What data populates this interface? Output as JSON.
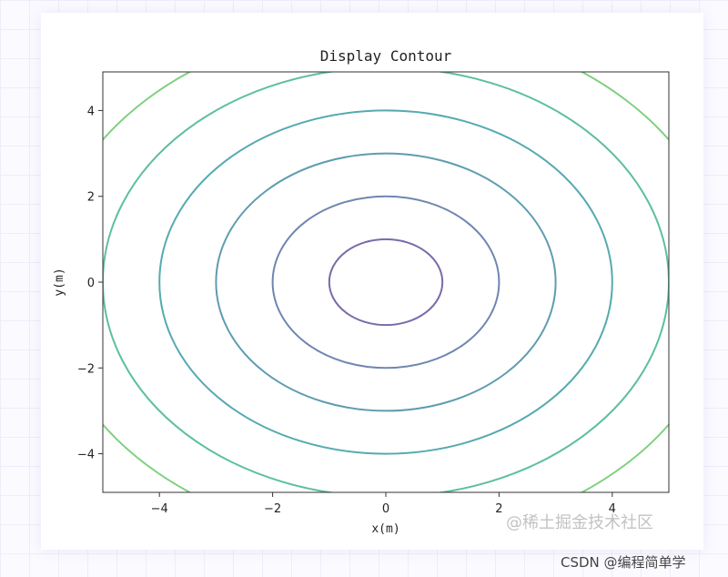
{
  "chart_data": {
    "type": "contour",
    "title": "Display Contour",
    "xlabel": "x(m)",
    "ylabel": "y(m)",
    "xlim": [
      -5,
      5
    ],
    "ylim": [
      -4.9,
      4.9
    ],
    "xticks": [
      -4,
      -2,
      0,
      2,
      4
    ],
    "yticks": [
      -4,
      -2,
      0,
      2,
      4
    ],
    "xtick_labels": [
      "−4",
      "−2",
      "0",
      "2",
      "4"
    ],
    "ytick_labels": [
      "−4",
      "−2",
      "0",
      "2",
      "4"
    ],
    "function": "sqrt(x^2 + y^2)",
    "levels": [
      1,
      2,
      3,
      4,
      5,
      6,
      7
    ],
    "level_colors": [
      "#7b6aa8",
      "#6f86b0",
      "#5f9cb0",
      "#55aab0",
      "#5cbfa0",
      "#7fd07f",
      "#b8d95e"
    ],
    "grid": false,
    "legend": "none"
  },
  "watermarks": {
    "inner": "@稀土掘金技术社区",
    "outer": "CSDN @编程简单学"
  }
}
